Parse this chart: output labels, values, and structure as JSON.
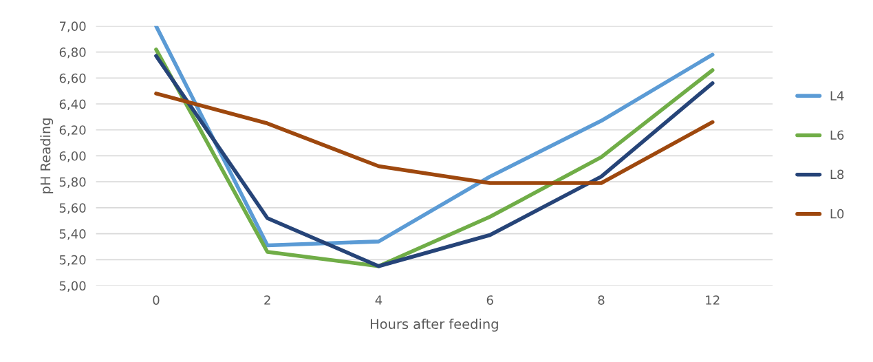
{
  "chart_data": {
    "type": "line",
    "xlabel": "Hours after feeding",
    "ylabel": "pH Reading",
    "categories": [
      "0",
      "2",
      "4",
      "6",
      "8",
      "12"
    ],
    "series": [
      {
        "name": "L4",
        "color": "#5b9bd5",
        "values": [
          7.0,
          5.31,
          5.34,
          5.84,
          6.27,
          6.78
        ]
      },
      {
        "name": "L6",
        "color": "#70ad47",
        "values": [
          6.82,
          5.26,
          5.15,
          5.53,
          5.99,
          6.66
        ]
      },
      {
        "name": "L8",
        "color": "#264478",
        "values": [
          6.77,
          5.52,
          5.15,
          5.39,
          5.84,
          6.56
        ]
      },
      {
        "name": "L0",
        "color": "#9e480e",
        "values": [
          6.48,
          6.25,
          5.92,
          5.79,
          5.79,
          6.26
        ]
      }
    ],
    "ylim": [
      5,
      7
    ],
    "yticks": [
      {
        "value": 5,
        "label": "5,00"
      },
      {
        "value": 5.2,
        "label": "5,20"
      },
      {
        "value": 5.4,
        "label": "5,40"
      },
      {
        "value": 5.6,
        "label": "5,60"
      },
      {
        "value": 5.8,
        "label": "5,80"
      },
      {
        "value": 6,
        "label": "6,00"
      },
      {
        "value": 6.2,
        "label": "6,20"
      },
      {
        "value": 6.4,
        "label": "6,40"
      },
      {
        "value": 6.6,
        "label": "6,60"
      },
      {
        "value": 6.8,
        "label": "6,80"
      },
      {
        "value": 7,
        "label": "7,00"
      }
    ],
    "grid": "y",
    "legend": "right",
    "marker": "none",
    "line_style": "solid"
  }
}
